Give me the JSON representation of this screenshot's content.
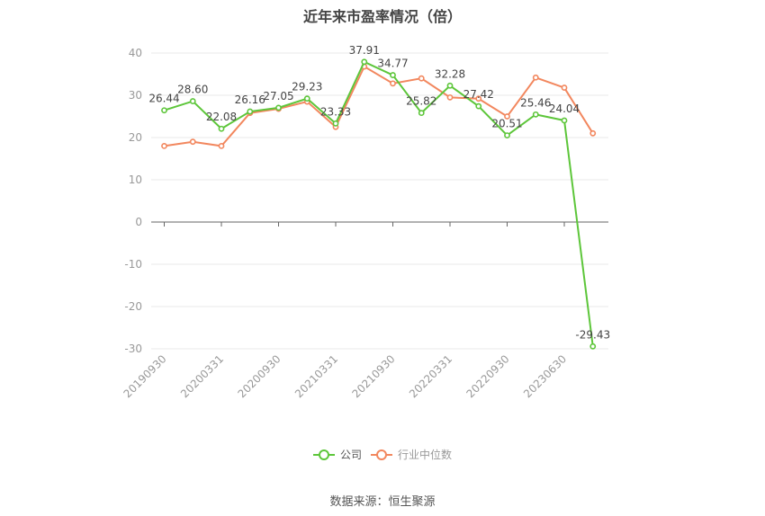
{
  "title": "近年来市盈率情况（倍）",
  "source": "数据来源：恒生聚源",
  "colors": {
    "company": "#5dc63a",
    "industry": "#f2875e",
    "axis": "#999999",
    "grid": "#e8e8e8",
    "label": "#444444"
  },
  "chart_data": {
    "type": "line",
    "title": "近年来市盈率情况（倍）",
    "ylim": [
      -30,
      40
    ],
    "yticks": [
      40,
      30,
      20,
      10,
      0,
      -10,
      -20,
      -30
    ],
    "xtick_labels": [
      "20190930",
      "20200331",
      "20200930",
      "20210331",
      "20210930",
      "20220331",
      "20220930",
      "20230630"
    ],
    "legend_position": "bottom",
    "series": [
      {
        "name": "公司",
        "values": [
          26.44,
          28.6,
          22.08,
          26.16,
          27.05,
          29.23,
          23.33,
          37.91,
          34.77,
          25.82,
          32.28,
          27.42,
          20.51,
          25.46,
          24.04,
          -29.43
        ],
        "labels": [
          "26.44",
          "28.60",
          "22.08",
          "26.16",
          "27.05",
          "29.23",
          "23.33",
          "37.91",
          "34.77",
          "25.82",
          "32.28",
          "27.42",
          "20.51",
          "25.46",
          "24.04",
          "-29.43"
        ]
      },
      {
        "name": "行业中位数",
        "values": [
          18.0,
          19.0,
          18.0,
          25.8,
          26.8,
          28.5,
          22.5,
          36.8,
          32.8,
          34.0,
          29.5,
          29.2,
          25.0,
          34.2,
          31.8,
          21.0
        ]
      }
    ]
  }
}
